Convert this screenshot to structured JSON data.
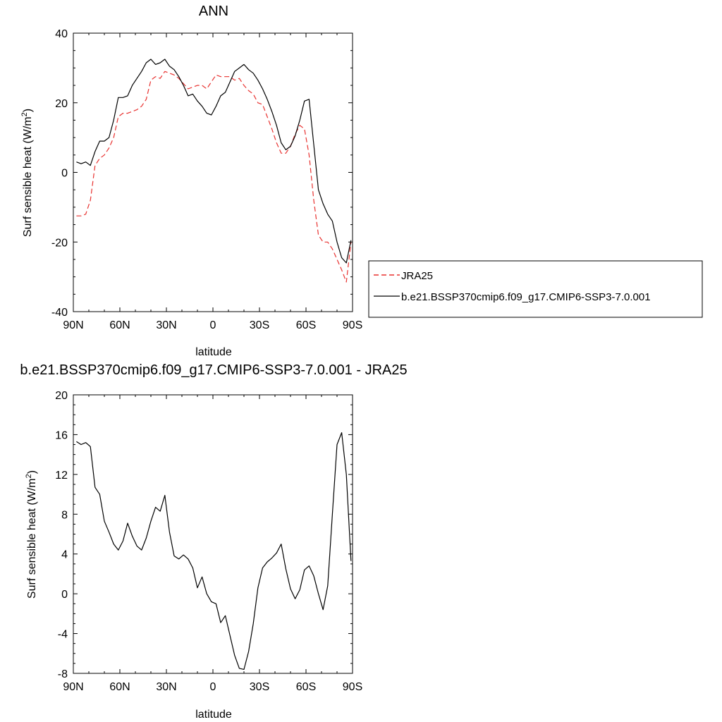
{
  "chart_data": [
    {
      "type": "line",
      "title": "ANN",
      "xlabel": "latitude",
      "ylabel_main": "Surf sensible heat (W/m",
      "ylabel_sup": "2",
      "ylabel_end": ")",
      "xlim": [
        90,
        -90
      ],
      "ylim": [
        -40,
        40
      ],
      "xticks": [
        90,
        60,
        30,
        0,
        -30,
        -60,
        -90
      ],
      "xtick_labels": [
        "90N",
        "60N",
        "30N",
        "0",
        "30S",
        "60S",
        "90S"
      ],
      "yticks": [
        -40,
        -20,
        0,
        20,
        40
      ],
      "ytick_labels": [
        "-40",
        "-20",
        "0",
        "20",
        "40"
      ],
      "legend_position": "right",
      "series": [
        {
          "name": "JRA25",
          "color": "#e8312f",
          "style": "dashed",
          "x": [
            88,
            85,
            82,
            79,
            76,
            73,
            70,
            67,
            64,
            61,
            58,
            55,
            52,
            49,
            46,
            43,
            40,
            37,
            34,
            31,
            28,
            25,
            22,
            19,
            16,
            13,
            10,
            7,
            4,
            1,
            -2,
            -5,
            -8,
            -11,
            -14,
            -17,
            -20,
            -23,
            -26,
            -29,
            -32,
            -35,
            -38,
            -41,
            -44,
            -47,
            -50,
            -53,
            -56,
            -59,
            -62,
            -65,
            -68,
            -71,
            -74,
            -77,
            -80,
            -83,
            -86,
            -89
          ],
          "y": [
            -12.5,
            -12.5,
            -12,
            -8,
            2,
            4,
            5,
            7,
            10,
            16,
            17,
            17,
            17.5,
            18,
            19,
            21,
            26.5,
            27.5,
            27,
            29,
            28.5,
            28,
            27,
            25.5,
            24,
            24.5,
            25,
            25,
            24,
            26,
            28,
            27.5,
            27.5,
            27.5,
            26.5,
            27,
            25,
            23.5,
            22.5,
            20,
            19.5,
            16,
            12.5,
            8.5,
            5.5,
            5.5,
            7.5,
            11,
            13.5,
            12.5,
            5,
            -8,
            -18,
            -20,
            -20,
            -22,
            -25,
            -28,
            -31.5,
            -20
          ]
        },
        {
          "name": "b.e21.BSSP370cmip6.f09_g17.CMIP6-SSP3-7.0.001",
          "color": "#000000",
          "style": "solid",
          "x": [
            88,
            85,
            82,
            79,
            76,
            73,
            70,
            67,
            64,
            61,
            58,
            55,
            52,
            49,
            46,
            43,
            40,
            37,
            34,
            31,
            28,
            25,
            22,
            19,
            16,
            13,
            10,
            7,
            4,
            1,
            -2,
            -5,
            -8,
            -11,
            -14,
            -17,
            -20,
            -23,
            -26,
            -29,
            -32,
            -35,
            -38,
            -41,
            -44,
            -47,
            -50,
            -53,
            -56,
            -59,
            -62,
            -65,
            -68,
            -71,
            -74,
            -77,
            -80,
            -83,
            -86,
            -89
          ],
          "y": [
            3,
            2.5,
            3,
            2,
            6,
            9,
            9,
            10,
            15,
            21.5,
            21.5,
            22,
            25,
            27,
            29,
            31.5,
            32.5,
            31,
            31.5,
            32.5,
            30.5,
            29.5,
            27.5,
            25,
            22,
            22.5,
            20.5,
            19,
            17,
            16.5,
            19,
            22,
            23,
            26,
            29,
            30,
            31,
            29.5,
            28.5,
            26.5,
            24,
            21,
            17.5,
            13.5,
            8.5,
            6.5,
            7.5,
            10.5,
            15,
            20.5,
            21,
            8,
            -5,
            -9,
            -12,
            -14,
            -20,
            -24.5,
            -26,
            -19.5
          ]
        }
      ]
    },
    {
      "type": "line",
      "title": "b.e21.BSSP370cmip6.f09_g17.CMIP6-SSP3-7.0.001 - JRA25",
      "xlabel": "latitude",
      "ylabel_main": "Surf sensible heat (W/m",
      "ylabel_sup": "2",
      "ylabel_end": ")",
      "xlim": [
        90,
        -90
      ],
      "ylim": [
        -8,
        20
      ],
      "xticks": [
        90,
        60,
        30,
        0,
        -30,
        -60,
        -90
      ],
      "xtick_labels": [
        "90N",
        "60N",
        "30N",
        "0",
        "30S",
        "60S",
        "90S"
      ],
      "yticks": [
        -8,
        -4,
        0,
        4,
        8,
        12,
        16,
        20
      ],
      "ytick_labels": [
        "-8",
        "-4",
        "0",
        "4",
        "8",
        "12",
        "16",
        "20"
      ],
      "series": [
        {
          "color": "#000000",
          "style": "solid",
          "x": [
            88,
            85,
            82,
            79,
            76,
            73,
            70,
            67,
            64,
            61,
            58,
            55,
            52,
            49,
            46,
            43,
            40,
            37,
            34,
            31,
            28,
            25,
            22,
            19,
            16,
            13,
            10,
            7,
            4,
            1,
            -2,
            -5,
            -8,
            -11,
            -14,
            -17,
            -20,
            -23,
            -26,
            -29,
            -32,
            -35,
            -38,
            -41,
            -44,
            -47,
            -50,
            -53,
            -56,
            -59,
            -62,
            -65,
            -68,
            -71,
            -74,
            -77,
            -80,
            -83,
            -86,
            -89
          ],
          "y": [
            15.3,
            15,
            15.2,
            14.8,
            10.7,
            10,
            7.3,
            6.2,
            5,
            4.4,
            5.3,
            7.1,
            5.8,
            4.8,
            4.4,
            5.6,
            7.3,
            8.7,
            8.3,
            9.9,
            6.2,
            3.8,
            3.5,
            3.9,
            3.5,
            2.6,
            0.6,
            1.7,
            0,
            -0.8,
            -1,
            -2.9,
            -2.2,
            -4.2,
            -6.2,
            -7.5,
            -7.6,
            -5.8,
            -3,
            0.6,
            2.6,
            3.2,
            3.6,
            4.1,
            5,
            2.5,
            0.5,
            -0.5,
            0.4,
            2.4,
            2.8,
            1.8,
            0,
            -1.6,
            0.8,
            8,
            15,
            16.2,
            12,
            3.3
          ]
        }
      ]
    }
  ]
}
